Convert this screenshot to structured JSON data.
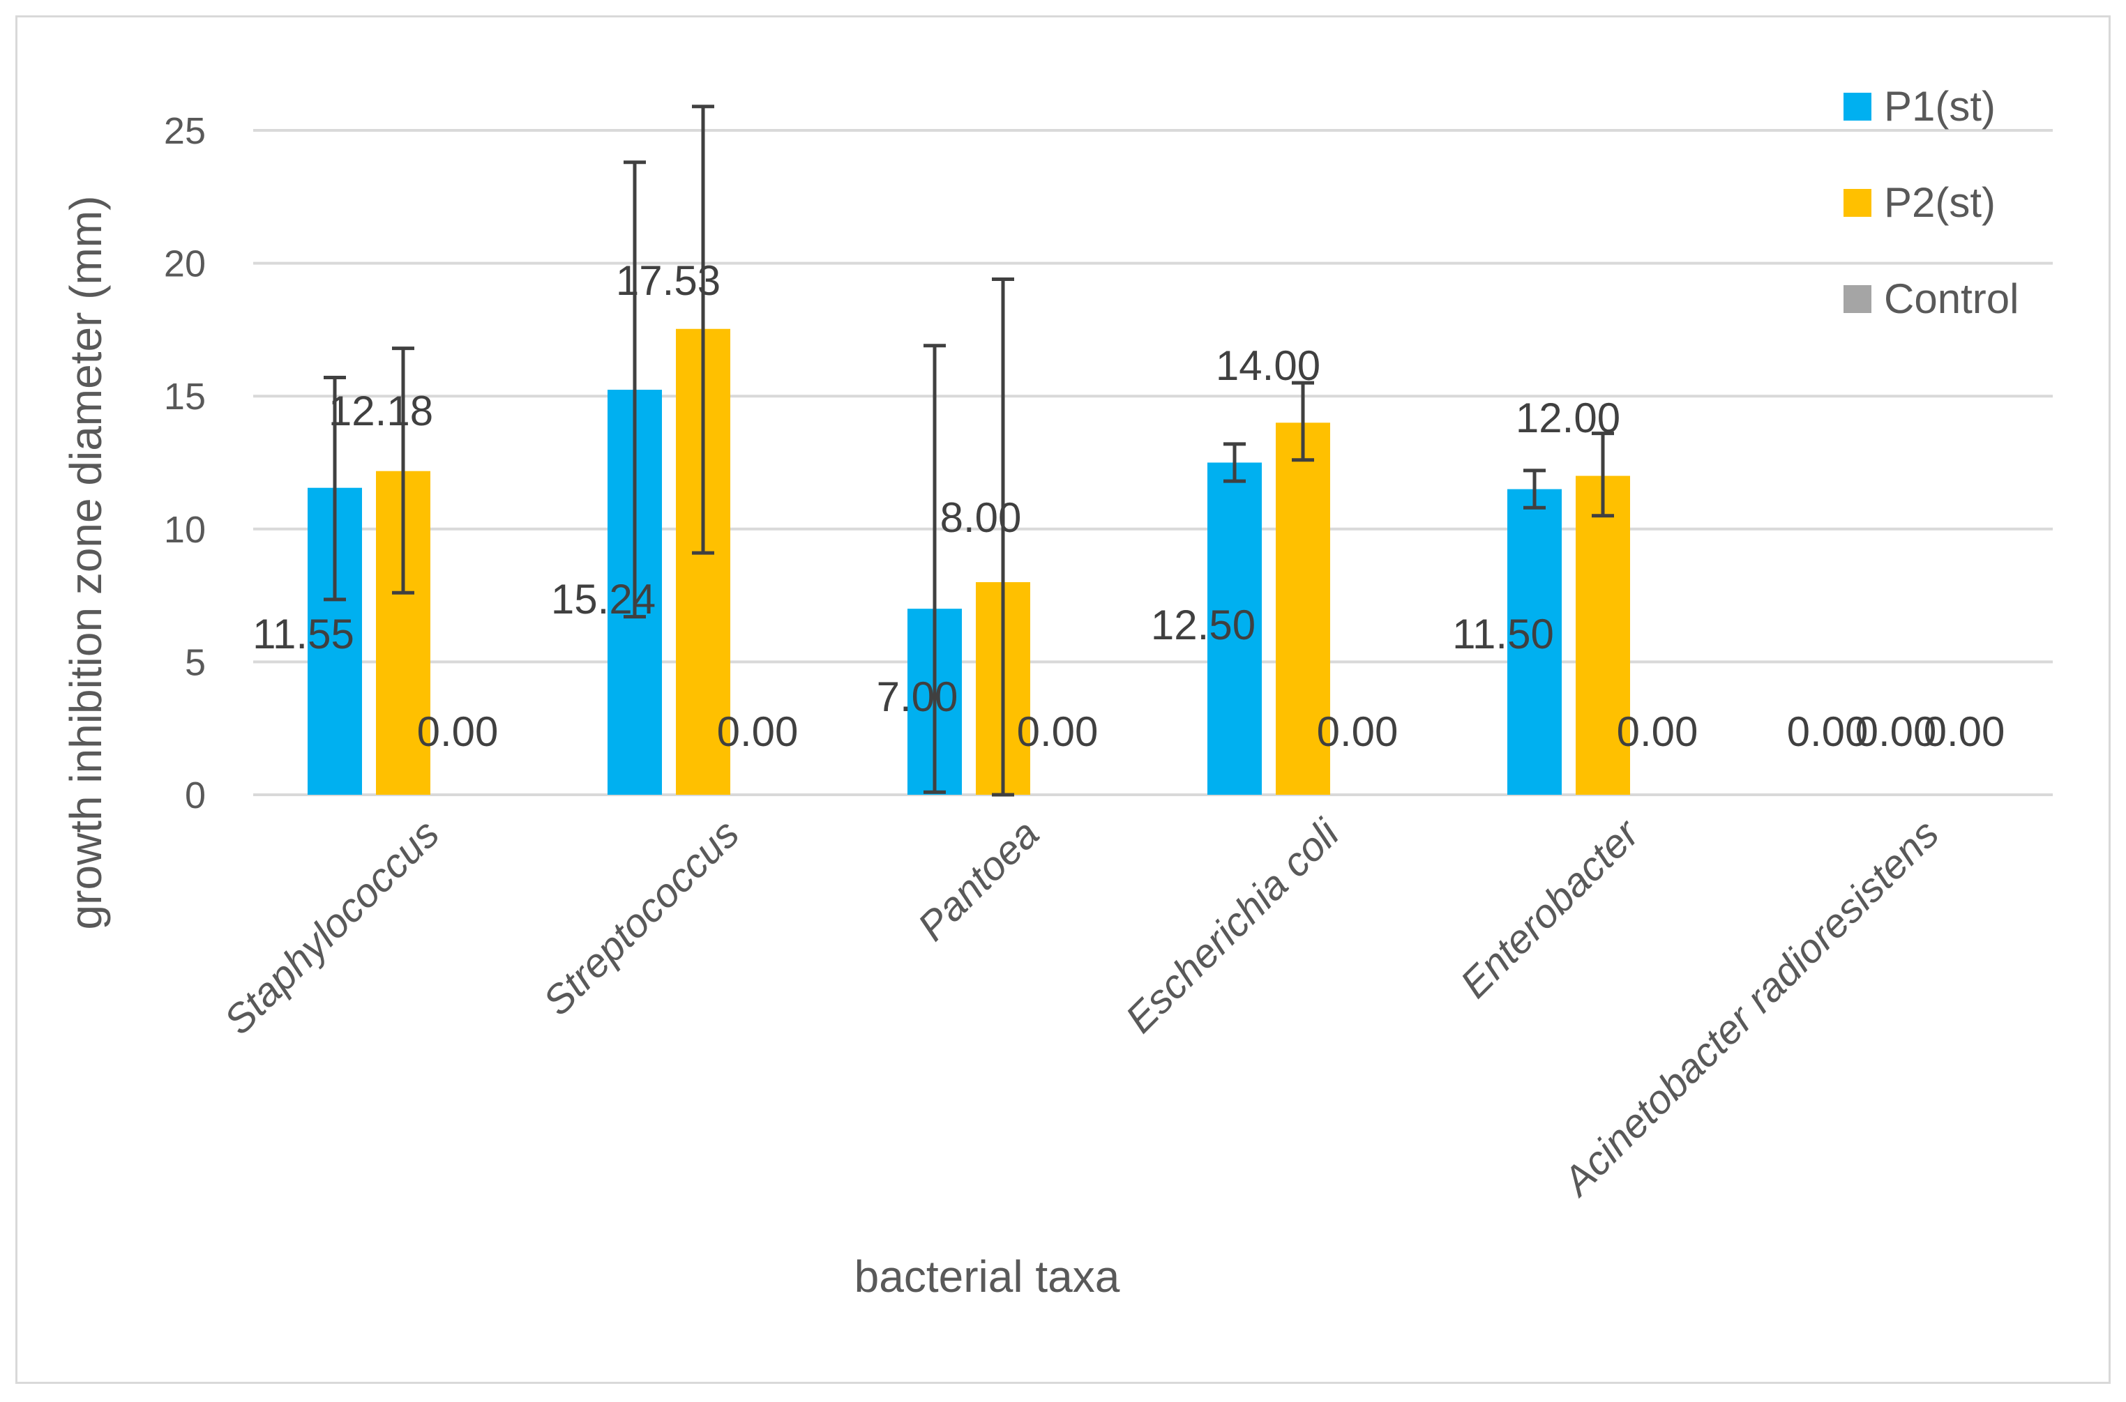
{
  "chart_data": {
    "type": "bar",
    "title": "",
    "xlabel": "bacterial taxa",
    "ylabel": "growth inhibition zone diameter (mm)",
    "ylim": [
      0,
      25
    ],
    "yticks": [
      "0",
      "5",
      "10",
      "15",
      "20",
      "25"
    ],
    "grid": true,
    "legend_position": "top-right",
    "categories": [
      "Staphylococcus",
      "Streptococcus",
      "Pantoea",
      "Escherichia coli",
      "Enterobacter",
      "Acinetobacter radioresistens"
    ],
    "series": [
      {
        "name": "P1(st)",
        "color": "#00b0f0",
        "values": [
          11.55,
          15.24,
          7.0,
          12.5,
          11.5,
          0.0
        ],
        "error_low": [
          7.35,
          6.7,
          0.1,
          11.8,
          10.8,
          null
        ],
        "error_high": [
          15.7,
          23.8,
          16.9,
          13.2,
          12.2,
          null
        ],
        "labels": [
          "11.55",
          "15.24",
          "7.00",
          "12.50",
          "11.50",
          "0.00"
        ]
      },
      {
        "name": "P2(st)",
        "color": "#ffc000",
        "values": [
          12.18,
          17.53,
          8.0,
          14.0,
          12.0,
          0.0
        ],
        "error_low": [
          7.6,
          9.1,
          0.0,
          12.6,
          10.5,
          null
        ],
        "error_high": [
          16.8,
          25.9,
          19.4,
          15.5,
          13.6,
          null
        ],
        "labels": [
          "12.18",
          "17.53",
          "8.00",
          "14.00",
          "12.00",
          "0.00"
        ]
      },
      {
        "name": "Control",
        "color": "#a5a5a5",
        "values": [
          0.0,
          0.0,
          0.0,
          0.0,
          0.0,
          0.0
        ],
        "error_low": [
          null,
          null,
          null,
          null,
          null,
          null
        ],
        "error_high": [
          null,
          null,
          null,
          null,
          null,
          null
        ],
        "labels": [
          "0.00",
          "0.00",
          "0.00",
          "0.00",
          "0.00",
          "0.00"
        ]
      }
    ]
  }
}
